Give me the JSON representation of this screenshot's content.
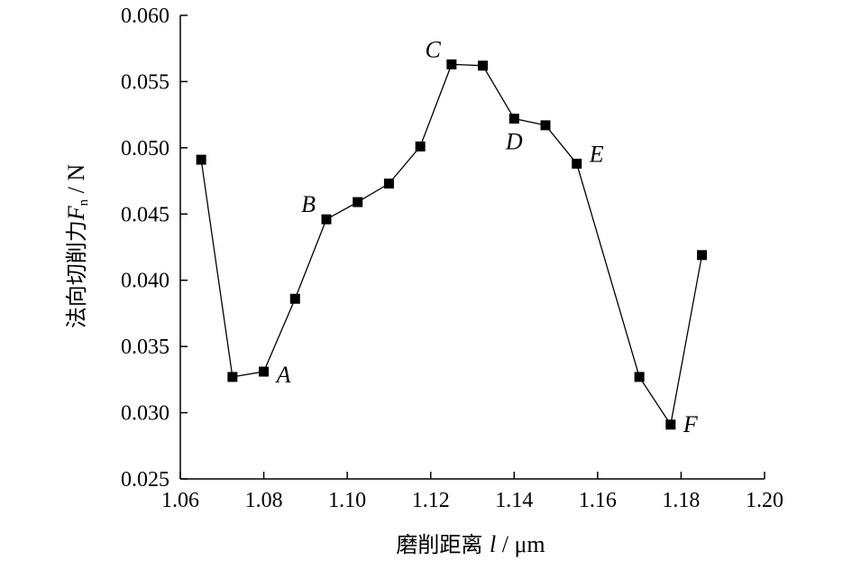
{
  "chart_data": {
    "type": "line",
    "title": "",
    "xlabel": {
      "prefix": "磨削距离 ",
      "var": "l",
      "unit": " / μm"
    },
    "ylabel": {
      "prefix": "法向切削力",
      "var": "F",
      "sub": "n",
      "unit": " / N"
    },
    "xlim": [
      1.06,
      1.2
    ],
    "ylim": [
      0.025,
      0.06
    ],
    "x_ticks": [
      "1.06",
      "1.08",
      "1.10",
      "1.12",
      "1.14",
      "1.16",
      "1.18",
      "1.20"
    ],
    "y_ticks": [
      "0.025",
      "0.030",
      "0.035",
      "0.040",
      "0.045",
      "0.050",
      "0.055",
      "0.060"
    ],
    "grid": false,
    "series": [
      {
        "marker": "square",
        "color": "#000000",
        "x": [
          1.065,
          1.0725,
          1.08,
          1.0875,
          1.095,
          1.1025,
          1.11,
          1.1175,
          1.125,
          1.1325,
          1.14,
          1.1475,
          1.155,
          1.17,
          1.1775,
          1.185
        ],
        "y": [
          0.0491,
          0.0327,
          0.0331,
          0.0386,
          0.0446,
          0.0459,
          0.0473,
          0.0501,
          0.0563,
          0.0562,
          0.0522,
          0.0517,
          0.0488,
          0.0327,
          0.0291,
          0.0419
        ]
      }
    ],
    "annotations": [
      {
        "text": "A",
        "x": 1.08,
        "y": 0.0331,
        "placement": "right-below"
      },
      {
        "text": "B",
        "x": 1.095,
        "y": 0.0446,
        "placement": "left-above"
      },
      {
        "text": "C",
        "x": 1.125,
        "y": 0.0563,
        "placement": "left-above"
      },
      {
        "text": "D",
        "x": 1.14,
        "y": 0.0522,
        "placement": "below"
      },
      {
        "text": "E",
        "x": 1.155,
        "y": 0.0488,
        "placement": "right-above"
      },
      {
        "text": "F",
        "x": 1.1775,
        "y": 0.0291,
        "placement": "right"
      }
    ]
  }
}
